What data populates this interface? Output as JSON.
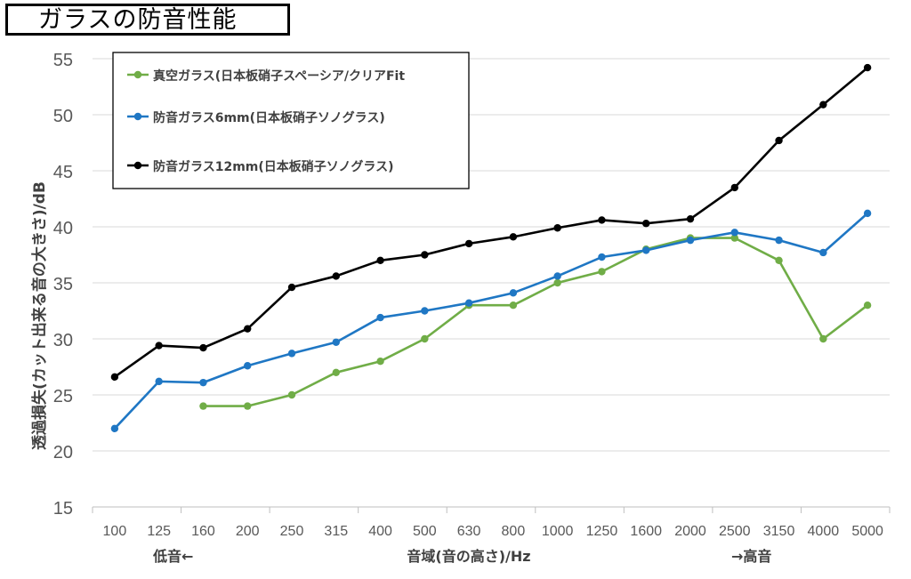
{
  "title": "ガラスの防音性能",
  "chart_data": {
    "type": "line",
    "title": "ガラスの防音性能",
    "ylabel": "透過損失(カット出来る音の大きさ)/dB",
    "xlabel": "音域(音の高さ)/Hz",
    "x_low_label": "低音←",
    "x_high_label": "→高音",
    "categories": [
      "100",
      "125",
      "160",
      "200",
      "250",
      "315",
      "400",
      "500",
      "630",
      "800",
      "1000",
      "1250",
      "1600",
      "2000",
      "2500",
      "3150",
      "4000",
      "5000"
    ],
    "ylim": [
      15,
      55
    ],
    "yticks": [
      "15",
      "20",
      "25",
      "30",
      "35",
      "40",
      "45",
      "50",
      "55"
    ],
    "grid": true,
    "legend_position": "top-left",
    "series": [
      {
        "name": "真空ガラス(日本板硝子スペーシア/クリアFit",
        "color": "#70ad47",
        "values": [
          null,
          null,
          24,
          24,
          25,
          27,
          28,
          30,
          33,
          33,
          35,
          36,
          38,
          39,
          39,
          37,
          30,
          33
        ]
      },
      {
        "name": "防音ガラス6mm(日本板硝子ソノグラス)",
        "color": "#1f77c4",
        "values": [
          22,
          26.2,
          26.1,
          27.6,
          28.7,
          29.7,
          31.9,
          32.5,
          33.2,
          34.1,
          35.6,
          37.3,
          37.9,
          38.8,
          39.5,
          38.8,
          37.7,
          41.2
        ]
      },
      {
        "name": "防音ガラス12mm(日本板硝子ソノグラス)",
        "color": "#000000",
        "values": [
          26.6,
          29.4,
          29.2,
          30.9,
          34.6,
          35.6,
          37,
          37.5,
          38.5,
          39.1,
          39.9,
          40.6,
          40.3,
          40.7,
          43.5,
          47.7,
          50.9,
          54.2
        ]
      }
    ]
  }
}
